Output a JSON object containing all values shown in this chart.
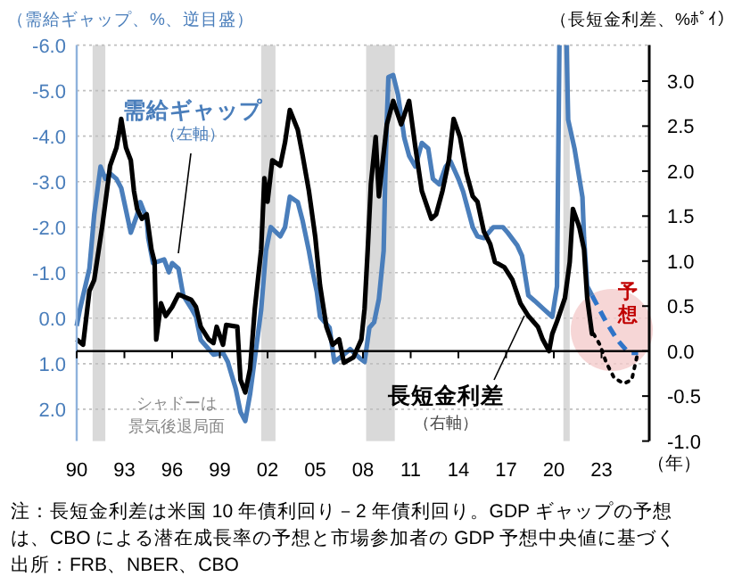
{
  "chart_data": {
    "type": "line",
    "ylabel": "（需給ギャップ、%、逆目盛）",
    "y2label": "（長短金利差、%ﾎﾟｲ）",
    "xlim": [
      1990,
      2026
    ],
    "xticks": [
      {
        "value": 1990,
        "label": "90"
      },
      {
        "value": 1993,
        "label": "93"
      },
      {
        "value": 1996,
        "label": "96"
      },
      {
        "value": 1999,
        "label": "99"
      },
      {
        "value": 2002,
        "label": "02"
      },
      {
        "value": 2005,
        "label": "05"
      },
      {
        "value": 2008,
        "label": "08"
      },
      {
        "value": 2011,
        "label": "11"
      },
      {
        "value": 2014,
        "label": "14"
      },
      {
        "value": 2017,
        "label": "17"
      },
      {
        "value": 2020,
        "label": "20"
      },
      {
        "value": 2023,
        "label": "23"
      }
    ],
    "ylim": [
      2.7,
      -6.0
    ],
    "yticks": [
      {
        "value": -6,
        "label": "-6.0"
      },
      {
        "value": -5,
        "label": "-5.0"
      },
      {
        "value": -4,
        "label": "-4.0"
      },
      {
        "value": -3,
        "label": "-3.0"
      },
      {
        "value": -2,
        "label": "-2.0"
      },
      {
        "value": -1,
        "label": "-1.0"
      },
      {
        "value": 0,
        "label": "0.0"
      },
      {
        "value": 1,
        "label": "1.0"
      },
      {
        "value": 2,
        "label": "2.0"
      }
    ],
    "y2lim": [
      -1.0,
      3.4
    ],
    "y2ticks": [
      {
        "value": -1,
        "label": "-1.0"
      },
      -0.5,
      {
        "value": 0,
        "label": "0.0"
      },
      0.5,
      {
        "value": 1,
        "label": "1.0"
      },
      1.5,
      {
        "value": 2,
        "label": "2.0"
      },
      2.5,
      {
        "value": 3,
        "label": "3.0"
      }
    ],
    "grid": "y",
    "bands": [
      {
        "axis": "x",
        "from": 1991.0,
        "to": 1991.8,
        "color": "#d9d9d9"
      },
      {
        "axis": "x",
        "from": 2001.6,
        "to": 2002.5,
        "color": "#d9d9d9"
      },
      {
        "axis": "x",
        "from": 2008.2,
        "to": 2010.0,
        "color": "#d9d9d9"
      },
      {
        "axis": "x",
        "from": 2020.6,
        "to": 2021.0,
        "color": "#d9d9d9"
      }
    ],
    "series": [
      {
        "color": "#4a7ebb",
        "line_style": "solid",
        "x": [
          1990.0,
          1990.2,
          1990.8,
          1991.1,
          1991.5,
          1991.8,
          1992.1,
          1992.5,
          1992.8,
          1993.4,
          1993.8,
          1994.0,
          1994.4,
          1994.5,
          1994.8,
          1995.5,
          1995.8,
          1996.0,
          1996.4,
          1996.7,
          1997.2,
          1997.5,
          1997.8,
          1998.3,
          1998.6,
          1999.2,
          1999.5,
          2000.0,
          2000.3,
          2000.6,
          2000.9,
          2001.2,
          2001.6,
          2001.9,
          2002.2,
          2002.8,
          2003.1,
          2003.4,
          2003.9,
          2004.2,
          2004.6,
          2004.8,
          2005.1,
          2005.3,
          2005.9,
          2006.2,
          2006.8,
          2007.2,
          2007.8,
          2008.1,
          2008.4,
          2008.7,
          2009.0,
          2009.3,
          2009.4,
          2009.5,
          2009.6,
          2009.9,
          2010.2,
          2010.6,
          2010.9,
          2011.3,
          2011.7,
          2012.1,
          2012.4,
          2012.8,
          2013.2,
          2013.5,
          2014.0,
          2014.3,
          2014.9,
          2015.2,
          2015.6,
          2016.2,
          2016.8,
          2017.1,
          2017.7,
          2018.0,
          2018.4,
          2018.8,
          2019.3,
          2019.9,
          2020.2,
          2020.35,
          2020.5,
          2020.8,
          2020.9,
          2021.3,
          2021.8,
          2021.9,
          2022.1,
          2022.4
        ],
        "values": [
          0.17,
          -0.19,
          -1.09,
          -2.27,
          -3.33,
          -3.06,
          -3.18,
          -3.06,
          -2.86,
          -1.88,
          -2.27,
          -2.55,
          -2.19,
          -1.76,
          -1.21,
          -1.29,
          -1.01,
          -1.21,
          -1.09,
          -0.5,
          -0.22,
          -0.03,
          0.48,
          0.68,
          0.8,
          0.76,
          0.96,
          1.55,
          2.06,
          2.26,
          1.67,
          0.88,
          -0.19,
          -1.48,
          -2.0,
          -1.8,
          -2.0,
          -2.67,
          -2.55,
          -2.15,
          -1.48,
          -1.09,
          -0.58,
          -0.03,
          0.21,
          0.96,
          0.8,
          0.68,
          0.88,
          0.96,
          0.21,
          0.09,
          -0.42,
          -1.48,
          -3.06,
          -4.36,
          -5.3,
          -5.34,
          -4.91,
          -3.96,
          -3.57,
          -3.33,
          -3.85,
          -3.73,
          -3.06,
          -2.94,
          -3.33,
          -3.45,
          -3.06,
          -2.78,
          -2.0,
          -1.8,
          -1.76,
          -2.0,
          -2.0,
          -1.88,
          -1.6,
          -1.37,
          -0.5,
          -0.38,
          -0.22,
          -0.03,
          -0.7,
          -6.0,
          null,
          -6.0,
          -4.36,
          -3.73,
          -2.66,
          -1.76,
          -0.7,
          -0.5
        ]
      },
      {
        "color": "#2f74c8",
        "line_style": "dashed",
        "x": [
          2022.4,
          2023.3,
          2024.0,
          2024.7,
          2025.3
        ],
        "values": [
          -0.5,
          0.09,
          0.48,
          0.76,
          0.76
        ]
      },
      {
        "color": "#000000",
        "axis": "y2",
        "line_style": "solid",
        "x": [
          1990.0,
          1990.4,
          1990.8,
          1991.1,
          1991.6,
          1991.9,
          1992.1,
          1992.5,
          1992.7,
          1992.8,
          1993.1,
          1993.4,
          1993.6,
          1993.8,
          1994.1,
          1994.4,
          1994.7,
          1994.9,
          1995.0,
          1995.3,
          1995.6,
          1996.0,
          1996.4,
          1997.2,
          1997.5,
          1997.8,
          1998.3,
          1998.6,
          1998.8,
          1999.2,
          1999.4,
          2000.1,
          2000.3,
          2000.6,
          2000.9,
          2001.2,
          2001.6,
          2001.8,
          2002.0,
          2002.3,
          2002.8,
          2003.1,
          2003.4,
          2003.9,
          2004.2,
          2004.6,
          2005.0,
          2005.3,
          2005.7,
          2006.1,
          2006.5,
          2006.8,
          2007.4,
          2007.9,
          2008.1,
          2008.3,
          2008.5,
          2008.8,
          2009.0,
          2009.5,
          2009.9,
          2010.4,
          2010.9,
          2011.3,
          2011.7,
          2012.3,
          2012.6,
          2013.0,
          2013.4,
          2013.7,
          2014.1,
          2014.5,
          2014.9,
          2015.2,
          2015.6,
          2016.0,
          2016.3,
          2016.9,
          2017.4,
          2017.9,
          2018.4,
          2019.0,
          2019.3,
          2019.7,
          2019.9,
          2020.2,
          2020.7,
          2021.0,
          2021.2,
          2021.6,
          2021.9,
          2022.1,
          2022.4,
          2022.5
        ],
        "values": [
          0.13,
          0.07,
          0.67,
          0.79,
          1.38,
          1.78,
          2.06,
          2.26,
          2.46,
          2.58,
          2.26,
          2.12,
          1.78,
          1.58,
          1.47,
          1.52,
          1.13,
          0.99,
          0.13,
          0.53,
          0.39,
          0.49,
          0.63,
          0.57,
          0.49,
          0.27,
          0.13,
          0.09,
          0.27,
          0.07,
          0.29,
          0.27,
          -0.32,
          -0.46,
          -0.2,
          0.47,
          1.13,
          1.92,
          1.66,
          2.12,
          2.06,
          2.32,
          2.68,
          2.46,
          2.18,
          1.78,
          1.27,
          0.73,
          0.27,
          0.07,
          0.13,
          -0.13,
          -0.07,
          0.13,
          0.47,
          1.13,
          1.86,
          2.38,
          1.72,
          2.52,
          2.78,
          2.52,
          2.78,
          2.26,
          1.78,
          1.47,
          1.52,
          1.78,
          2.12,
          2.58,
          2.38,
          1.98,
          1.72,
          1.66,
          1.33,
          1.19,
          0.99,
          0.93,
          0.79,
          0.53,
          0.39,
          0.27,
          0.13,
          0.0,
          0.19,
          0.33,
          0.59,
          0.99,
          1.58,
          1.38,
          1.13,
          0.59,
          0.19,
          0.19
        ]
      },
      {
        "color": "#000000",
        "axis": "y2",
        "line_style": "dotted",
        "x": [
          2022.5,
          2022.9,
          2023.3,
          2023.8,
          2024.4,
          2024.9,
          2025.3
        ],
        "values": [
          0.19,
          0.07,
          -0.13,
          -0.3,
          -0.36,
          -0.32,
          0.0
        ]
      }
    ],
    "annotations": [
      "需給ギャップ",
      "長短金利差",
      "（左軸）",
      "（右軸）",
      "シャドーは",
      "景気後退局面",
      "予想",
      "（年）",
      "注：長短金利差は米国 10 年債利回り－2 年債利回り。GDP ギャップの予想",
      "は、CBO による潜在成長率の予想と市場参加者の GDP 予想中央値に基づく",
      "出所：FRB、NBER、CBO"
    ]
  }
}
